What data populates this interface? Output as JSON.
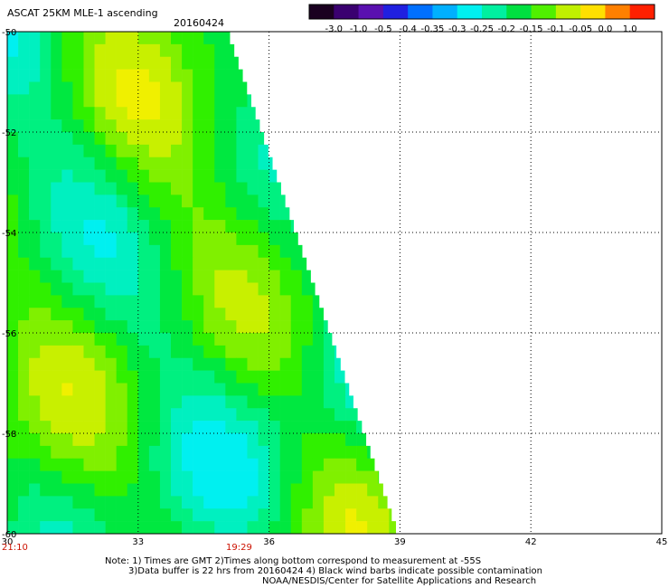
{
  "title": "ASCAT 25KM MLE-1 ascending",
  "date": "20160424",
  "colorbar": {
    "labels": [
      "-3.0",
      "-1.0",
      "-0.5",
      "-0.4",
      "-0.35",
      "-0.3",
      "-0.25",
      "-0.2",
      "-0.15",
      "-0.1",
      "-0.05",
      "0.0",
      "1.0"
    ],
    "colors": [
      "#1a0020",
      "#3a0070",
      "#5a10b0",
      "#2020e0",
      "#0070ff",
      "#00b0ff",
      "#00f0f0",
      "#00f0a0",
      "#00e040",
      "#50f000",
      "#c0f000",
      "#ffe000",
      "#ff8000",
      "#ff2000"
    ]
  },
  "axes": {
    "x_ticks": [
      "30",
      "33",
      "36",
      "39",
      "42",
      "45"
    ],
    "y_ticks": [
      "-50",
      "-52",
      "-54",
      "-56",
      "-58",
      "-60"
    ],
    "x_range": [
      30,
      45
    ],
    "y_range": [
      -60,
      -50
    ]
  },
  "times": [
    "21:10",
    "19:29"
  ],
  "notes": {
    "line1": "Note: 1) Times are GMT 2)Times along bottom correspond to measurement at -55S",
    "line2": "3)Data buffer is 22 hrs from 20160424 4) Black wind barbs indicate possible contamination",
    "line3": "NOAA/NESDIS/Center for Satellite Applications and Research"
  }
}
